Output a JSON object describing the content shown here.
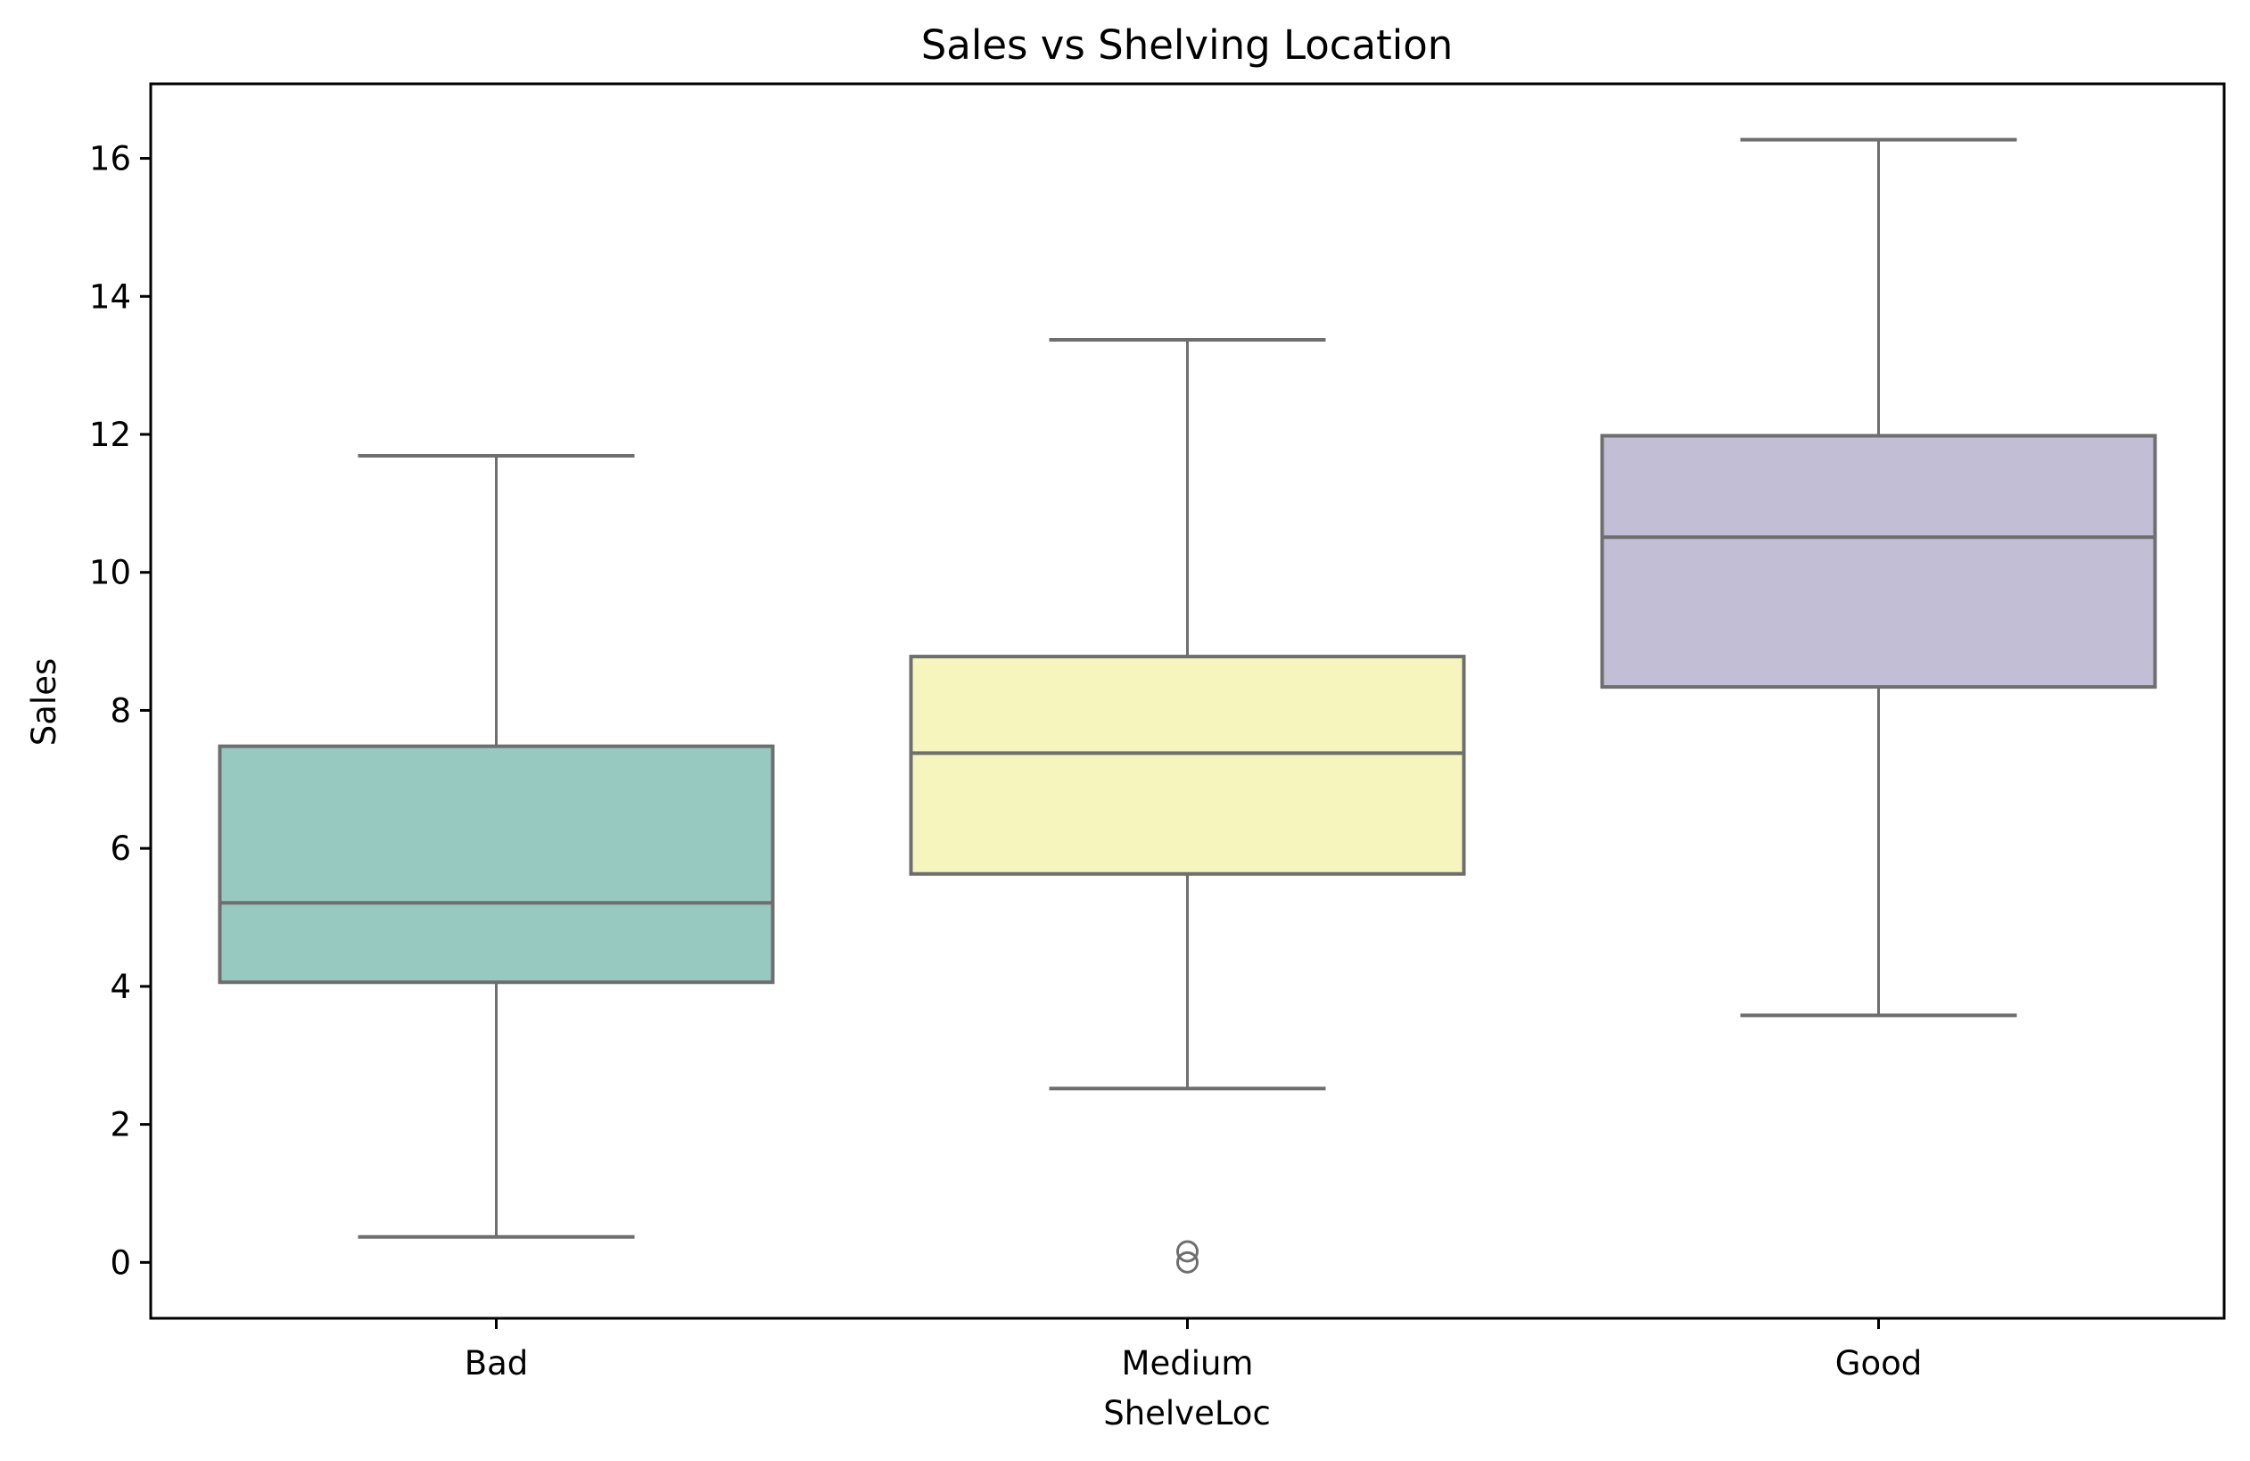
{
  "chart_data": {
    "type": "box",
    "title": "Sales vs Shelving Location",
    "xlabel": "ShelveLoc",
    "ylabel": "Sales",
    "categories": [
      "Bad",
      "Medium",
      "Good"
    ],
    "ylim": [
      -0.81,
      17.08
    ],
    "yticks": [
      0,
      2,
      4,
      6,
      8,
      10,
      12,
      14,
      16
    ],
    "grid": false,
    "legend": null,
    "boxes": [
      {
        "category": "Bad",
        "whislo": 0.37,
        "q1": 4.06,
        "median": 5.21,
        "q3": 7.48,
        "whishi": 11.69,
        "fliers": [],
        "color": "#98c9c1"
      },
      {
        "category": "Medium",
        "whislo": 2.52,
        "q1": 5.63,
        "median": 7.38,
        "q3": 8.78,
        "whishi": 13.37,
        "fliers": [
          0.16,
          0.0
        ],
        "color": "#f5f5bd"
      },
      {
        "category": "Good",
        "whislo": 3.58,
        "q1": 8.34,
        "median": 10.51,
        "q3": 11.98,
        "whishi": 16.27,
        "fliers": [],
        "color": "#c1bed6"
      }
    ]
  },
  "style": {
    "line_color": "#6e6e6e",
    "axis_color": "#000000"
  }
}
